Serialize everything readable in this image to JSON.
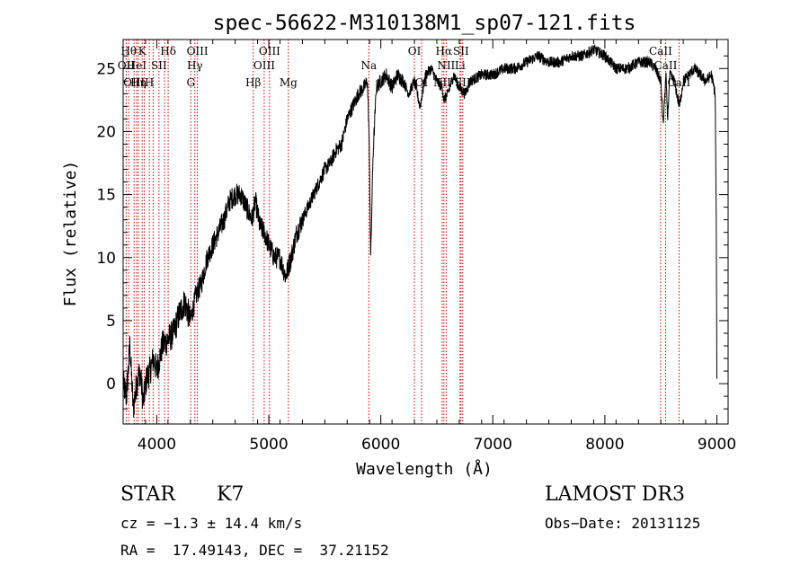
{
  "chart_data": {
    "type": "line",
    "title": "spec-56622-M310138M1_sp07-121.fits",
    "xlabel": "Wavelength (Å)",
    "ylabel": "Flux (relative)",
    "xlim": [
      3700,
      9100
    ],
    "ylim": [
      -3.2,
      27.3
    ],
    "x_ticks": [
      4000,
      5000,
      6000,
      7000,
      8000,
      9000
    ],
    "y_ticks": [
      0,
      5,
      10,
      15,
      20,
      25
    ],
    "grid": false,
    "series": [
      {
        "x": [
          3700,
          3730,
          3760,
          3790,
          3820,
          3850,
          3880,
          3910,
          3940,
          3970,
          4000,
          4050,
          4100,
          4150,
          4200,
          4250,
          4300,
          4350,
          4400,
          4450,
          4500,
          4550,
          4600,
          4650,
          4700,
          4750,
          4800,
          4850,
          4880,
          4920,
          4960,
          5000,
          5050,
          5100,
          5150,
          5200,
          5250,
          5300,
          5350,
          5400,
          5450,
          5500,
          5550,
          5600,
          5650,
          5700,
          5750,
          5800,
          5850,
          5880,
          5895,
          5910,
          5930,
          5960,
          6000,
          6050,
          6100,
          6150,
          6200,
          6250,
          6300,
          6350,
          6400,
          6450,
          6500,
          6550,
          6563,
          6600,
          6650,
          6700,
          6750,
          6800,
          6900,
          7000,
          7100,
          7200,
          7300,
          7400,
          7500,
          7600,
          7700,
          7800,
          7900,
          8000,
          8100,
          8200,
          8300,
          8400,
          8450,
          8500,
          8520,
          8545,
          8560,
          8580,
          8620,
          8665,
          8700,
          8750,
          8800,
          8850,
          8900,
          8950,
          8985,
          8995,
          9000
        ],
        "y": [
          0,
          -1,
          3,
          -2,
          0,
          1,
          -1.5,
          0.5,
          1,
          2,
          1,
          3,
          3.5,
          4,
          5.5,
          6.5,
          5,
          7,
          8,
          10,
          11,
          12,
          13,
          14.5,
          15,
          15,
          14,
          13,
          14.5,
          12.5,
          12,
          11,
          10,
          10,
          8.5,
          10,
          12,
          13,
          14,
          15,
          16,
          17,
          17.5,
          18.5,
          19,
          21,
          22,
          23,
          23.5,
          24,
          20,
          10,
          18,
          23.5,
          24,
          24.5,
          23.5,
          24.5,
          24,
          23,
          24,
          22,
          24.5,
          25,
          24,
          23.5,
          22.5,
          23,
          24.5,
          23.5,
          23,
          24,
          24.5,
          24.5,
          25,
          25,
          25.5,
          26,
          25.5,
          25.5,
          26,
          26,
          26.5,
          26,
          25,
          25,
          25.5,
          25.5,
          25,
          24,
          20.5,
          24.5,
          21,
          24.5,
          24,
          22,
          24,
          24.5,
          25,
          24.5,
          24,
          24.5,
          23,
          12,
          0
        ]
      }
    ],
    "lines": [
      {
        "w": 3750,
        "label": "Hθ",
        "row": 1
      },
      {
        "w": 3727,
        "label": "OII",
        "row": 2
      },
      {
        "w": 3798,
        "label": "OIII",
        "row": 3
      },
      {
        "w": 3820,
        "label": "HeI",
        "row": 2
      },
      {
        "w": 3835,
        "label": "Hη",
        "row": 3
      },
      {
        "w": 3870,
        "label": "K",
        "row": 1
      },
      {
        "w": 3889,
        "label": "",
        "row": 0
      },
      {
        "w": 3934,
        "label": "H",
        "row": 3
      },
      {
        "w": 3968,
        "label": "",
        "row": 0
      },
      {
        "w": 4020,
        "label": "SII",
        "row": 2
      },
      {
        "w": 4070,
        "label": "",
        "row": 0
      },
      {
        "w": 4102,
        "label": "Hδ",
        "row": 1
      },
      {
        "w": 4304,
        "label": "G",
        "row": 3
      },
      {
        "w": 4340,
        "label": "Hγ",
        "row": 2
      },
      {
        "w": 4363,
        "label": "OIII",
        "row": 1
      },
      {
        "w": 4861,
        "label": "Hβ",
        "row": 3
      },
      {
        "w": 4959,
        "label": "OIII",
        "row": 2
      },
      {
        "w": 5007,
        "label": "OIII",
        "row": 1
      },
      {
        "w": 5175,
        "label": "Mg",
        "row": 3
      },
      {
        "w": 5893,
        "label": "Na",
        "row": 2
      },
      {
        "w": 6300,
        "label": "OI",
        "row": 1
      },
      {
        "w": 6364,
        "label": "OI",
        "row": 3
      },
      {
        "w": 6548,
        "label": "NII",
        "row": 3
      },
      {
        "w": 6563,
        "label": "Hα",
        "row": 1
      },
      {
        "w": 6583,
        "label": "NII",
        "row": 2
      },
      {
        "w": 6707,
        "label": "Li",
        "row": 2
      },
      {
        "w": 6716,
        "label": "SII",
        "row": 1
      },
      {
        "w": 6731,
        "label": "SII",
        "row": 3
      },
      {
        "w": 8498,
        "label": "CaII",
        "row": 1
      },
      {
        "w": 8542,
        "label": "CaII",
        "row": 2
      },
      {
        "w": 8662,
        "label": "CaII",
        "row": 3
      }
    ]
  },
  "info": {
    "class": "STAR",
    "subclass": "K7",
    "survey": "LAMOST DR3",
    "cz": "cz = −1.3 ± 14.4 km/s",
    "obs_date": "Obs−Date: 20131125",
    "radec": "RA =  17.49143, DEC =  37.21152"
  }
}
